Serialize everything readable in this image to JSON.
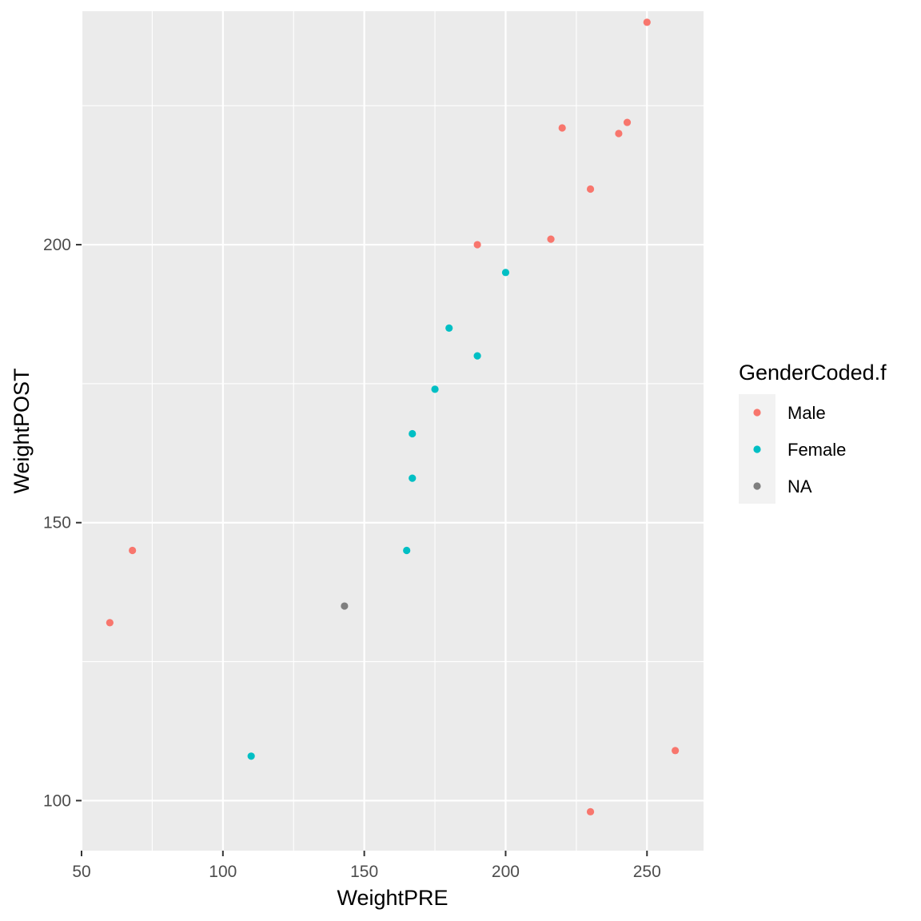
{
  "chart_data": {
    "type": "scatter",
    "xlabel": "WeightPRE",
    "ylabel": "WeightPOST",
    "xlim": [
      50,
      270
    ],
    "ylim": [
      91,
      242
    ],
    "x_ticks": [
      50,
      100,
      150,
      200,
      250
    ],
    "x_tick_labels": [
      "50",
      "100",
      "150",
      "200",
      "250"
    ],
    "y_ticks": [
      100,
      150,
      200
    ],
    "y_tick_labels": [
      "100",
      "150",
      "200"
    ],
    "grid": true,
    "legend": {
      "title": "GenderCoded.f",
      "placement": "right",
      "entries": [
        "Male",
        "Female",
        "NA"
      ]
    },
    "series": [
      {
        "name": "Male",
        "color": "#F8766D",
        "points": [
          {
            "x": 60,
            "y": 132
          },
          {
            "x": 68,
            "y": 145
          },
          {
            "x": 190,
            "y": 200
          },
          {
            "x": 216,
            "y": 201
          },
          {
            "x": 220,
            "y": 221
          },
          {
            "x": 230,
            "y": 210
          },
          {
            "x": 230,
            "y": 98
          },
          {
            "x": 240,
            "y": 220
          },
          {
            "x": 243,
            "y": 222
          },
          {
            "x": 250,
            "y": 240
          },
          {
            "x": 260,
            "y": 109
          }
        ]
      },
      {
        "name": "Female",
        "color": "#00BFC4",
        "points": [
          {
            "x": 110,
            "y": 108
          },
          {
            "x": 165,
            "y": 145
          },
          {
            "x": 167,
            "y": 158
          },
          {
            "x": 167,
            "y": 166
          },
          {
            "x": 175,
            "y": 174
          },
          {
            "x": 180,
            "y": 185
          },
          {
            "x": 190,
            "y": 180
          },
          {
            "x": 200,
            "y": 195
          }
        ]
      },
      {
        "name": "NA",
        "color": "#7F7F7F",
        "points": [
          {
            "x": 143,
            "y": 135
          }
        ]
      }
    ]
  }
}
